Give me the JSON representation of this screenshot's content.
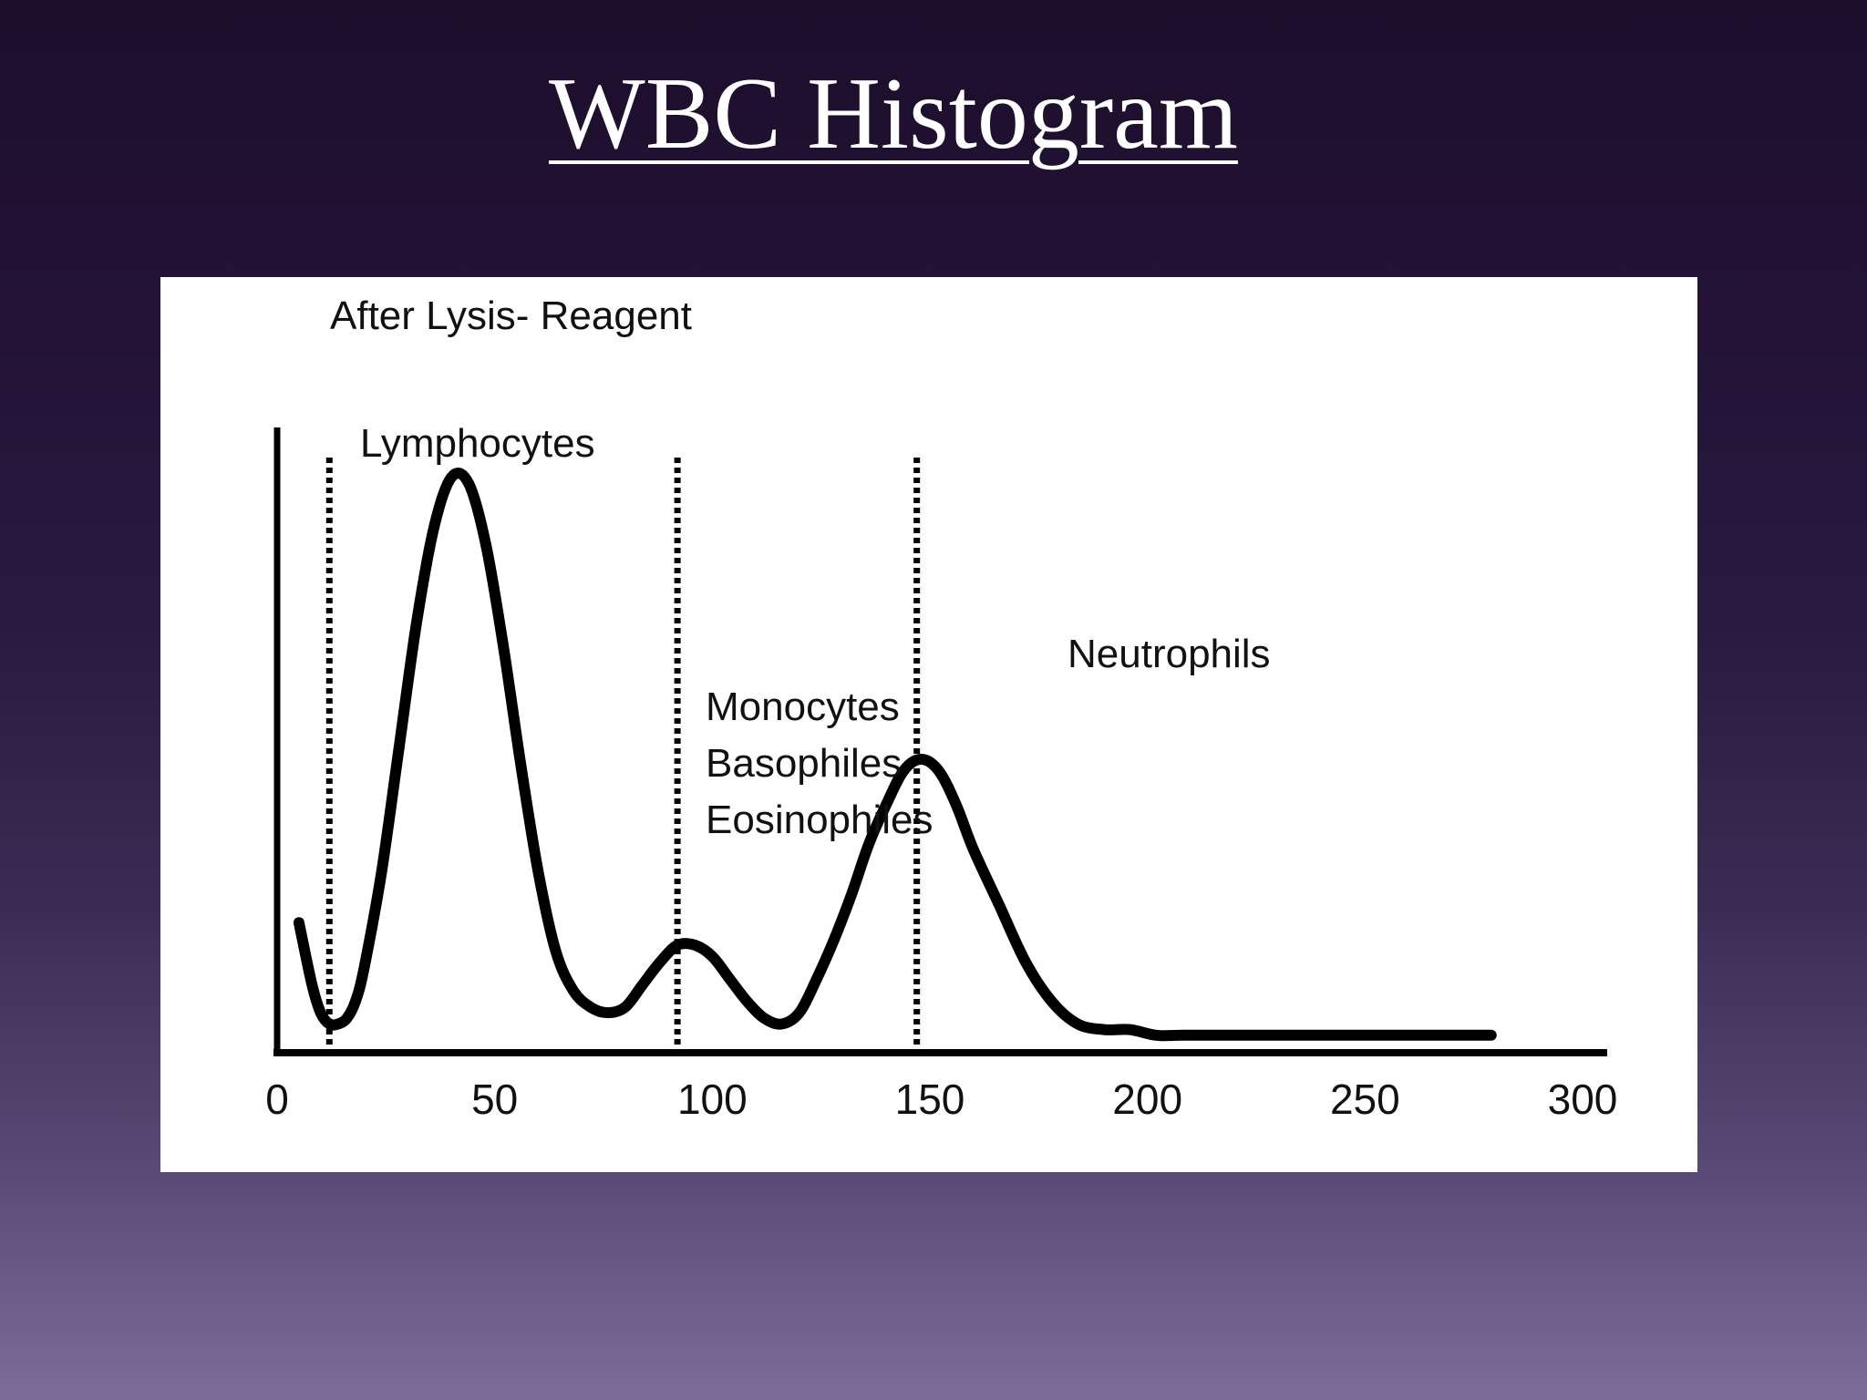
{
  "slide": {
    "title": "WBC Histogram"
  },
  "chart_data": {
    "type": "line",
    "subtitle": "After Lysis- Reagent",
    "xlim": [
      0,
      300
    ],
    "x_ticks": [
      "0",
      "50",
      "100",
      "150",
      "200",
      "250",
      "300"
    ],
    "x_tick_values": [
      0,
      50,
      100,
      150,
      200,
      250,
      300
    ],
    "series": [
      {
        "x": [
          5,
          8,
          10,
          12,
          14,
          16,
          18,
          20,
          24,
          28,
          32,
          36,
          40,
          44,
          48,
          52,
          56,
          60,
          64,
          68,
          72,
          76,
          80,
          84,
          88,
          92,
          96,
          100,
          104,
          108,
          112,
          116,
          120,
          124,
          128,
          132,
          136,
          140,
          144,
          148,
          152,
          156,
          160,
          166,
          172,
          178,
          184,
          190,
          196,
          202,
          208,
          214,
          220,
          226,
          232,
          238,
          244,
          250,
          256,
          262,
          268,
          274,
          279
        ],
        "y": [
          21,
          10,
          5,
          3,
          3,
          4,
          7,
          13,
          30,
          52,
          74,
          91,
          100,
          99,
          88,
          70,
          49,
          30,
          16,
          9,
          6,
          5,
          6,
          10,
          14,
          17,
          17,
          15,
          11,
          7,
          4,
          3,
          5,
          11,
          18,
          26,
          35,
          42,
          48,
          50,
          48,
          42,
          34,
          24,
          14,
          7,
          3,
          2,
          2,
          1,
          1,
          1,
          1,
          1,
          1,
          1,
          1,
          1,
          1,
          1,
          1,
          1,
          1
        ]
      }
    ],
    "dividers_x": [
      12,
      92,
      147
    ],
    "region_labels": [
      {
        "text": "Lymphocytes"
      },
      {
        "text": "Monocytes"
      },
      {
        "text": "Basophiles"
      },
      {
        "text": "Eosinophiles"
      },
      {
        "text": "Neutrophils"
      }
    ]
  }
}
